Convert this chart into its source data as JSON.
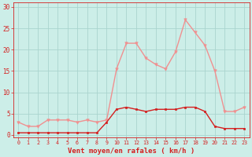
{
  "x": [
    0,
    1,
    2,
    3,
    4,
    5,
    6,
    7,
    8,
    9,
    10,
    11,
    12,
    13,
    14,
    15,
    16,
    17,
    18,
    19,
    20,
    21,
    22,
    23
  ],
  "wind_avg": [
    0.5,
    0.5,
    0.5,
    0.5,
    0.5,
    0.5,
    0.5,
    0.5,
    0.5,
    3.0,
    6.0,
    6.5,
    6.0,
    5.5,
    6.0,
    6.0,
    6.0,
    6.5,
    6.5,
    5.5,
    2.0,
    1.5,
    1.5,
    1.5
  ],
  "wind_gust": [
    3.0,
    2.0,
    2.0,
    3.5,
    3.5,
    3.5,
    3.0,
    3.5,
    3.0,
    3.5,
    15.5,
    21.5,
    21.5,
    18.0,
    16.5,
    15.5,
    19.5,
    27.0,
    24.0,
    21.0,
    15.0,
    5.5,
    5.5,
    6.5
  ],
  "avg_color": "#d42020",
  "gust_color": "#f09090",
  "bg_color": "#cceee8",
  "grid_color": "#aad4ce",
  "xlabel": "Vent moyen/en rafales ( km/h )",
  "ylabel_ticks": [
    0,
    5,
    10,
    15,
    20,
    25,
    30
  ],
  "ylim": [
    -0.5,
    31
  ],
  "xlim": [
    -0.5,
    23.5
  ]
}
